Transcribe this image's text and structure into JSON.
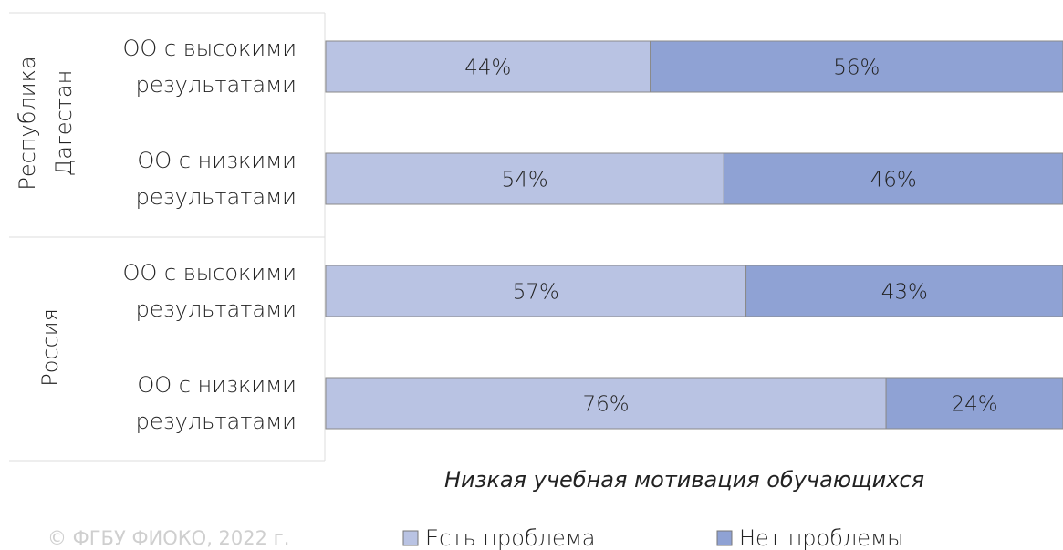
{
  "chart_data": {
    "type": "stacked_barh",
    "groups": [
      "Республика\nДагестан",
      "Россия"
    ],
    "categories": [
      "ОО с высокими\nрезультатами",
      "ОО с низкими\nрезультатами",
      "ОО с высокими\nрезультатами",
      "ОО с низкими\nрезультатами"
    ],
    "series": [
      {
        "name": "Есть проблема",
        "color": "#b9c3e3",
        "values": [
          44,
          54,
          57,
          76
        ],
        "value_labels": [
          "44%",
          "54%",
          "57%",
          "76%"
        ]
      },
      {
        "name": "Нет проблемы",
        "color": "#8fa2d4",
        "values": [
          56,
          46,
          43,
          24
        ],
        "value_labels": [
          "56%",
          "46%",
          "43%",
          "24%"
        ]
      }
    ],
    "xlim": [
      0,
      100
    ],
    "xlabel": "Низкая учебная мотивация обучающихся",
    "source": "© ФГБУ ФИОКО, 2022 г."
  }
}
